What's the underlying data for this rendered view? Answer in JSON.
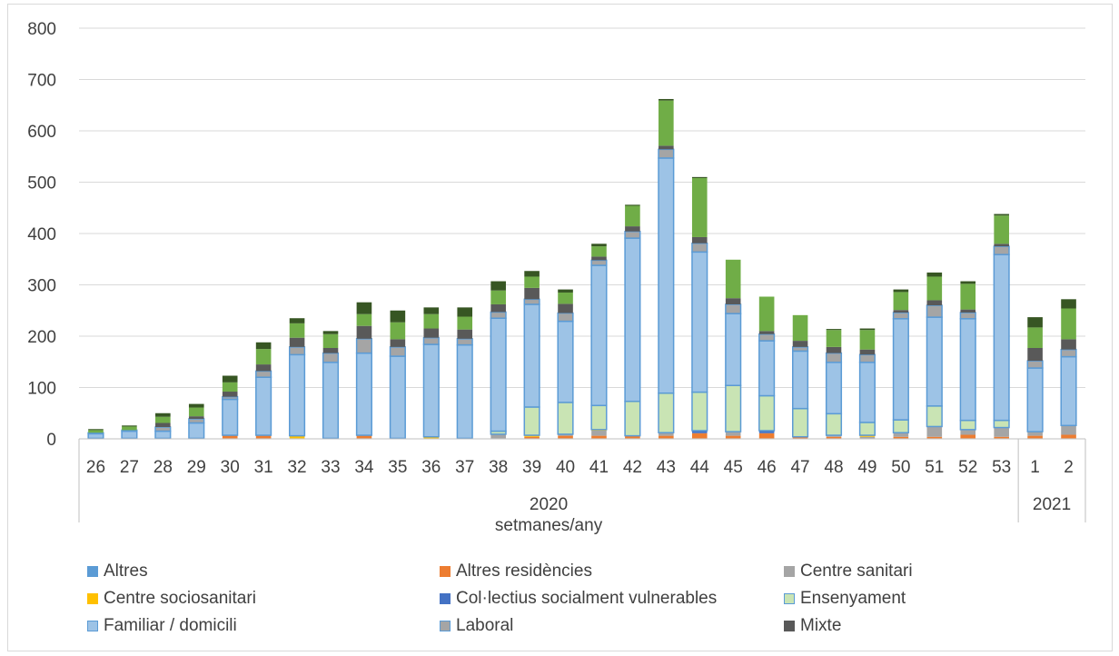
{
  "chart_data": {
    "type": "bar",
    "stacked": true,
    "xlabel": "setmanes/any",
    "ylim": [
      0,
      800
    ],
    "yticks": [
      0,
      100,
      200,
      300,
      400,
      500,
      600,
      700,
      800
    ],
    "grid": true,
    "legend_position": "bottom",
    "categories": [
      "26",
      "27",
      "28",
      "29",
      "30",
      "31",
      "32",
      "33",
      "34",
      "35",
      "36",
      "37",
      "38",
      "39",
      "40",
      "41",
      "42",
      "43",
      "44",
      "45",
      "46",
      "47",
      "48",
      "49",
      "50",
      "51",
      "52",
      "53",
      "1",
      "2"
    ],
    "year_groups": [
      {
        "label": "2020",
        "count": 28
      },
      {
        "label": "2021",
        "count": 2
      }
    ],
    "series": [
      {
        "name": "Altres",
        "color": "#5b9bd5",
        "values": [
          1,
          1,
          1,
          1,
          1,
          1,
          1,
          1,
          1,
          1,
          1,
          1,
          1,
          1,
          1,
          1,
          1,
          1,
          1,
          1,
          1,
          1,
          1,
          1,
          1,
          1,
          1,
          1,
          1,
          1
        ]
      },
      {
        "name": "Altres residències",
        "color": "#ed7d31",
        "values": [
          0,
          0,
          0,
          0,
          6,
          6,
          0,
          0,
          6,
          0,
          0,
          0,
          0,
          3,
          5,
          5,
          5,
          5,
          10,
          5,
          10,
          3,
          3,
          0,
          3,
          3,
          7,
          3,
          5,
          7
        ]
      },
      {
        "name": "Centre sanitari",
        "color": "#a5a5a5",
        "values": [
          0,
          0,
          0,
          0,
          0,
          0,
          0,
          0,
          0,
          0,
          0,
          0,
          8,
          0,
          3,
          10,
          0,
          6,
          0,
          8,
          0,
          0,
          3,
          3,
          8,
          20,
          10,
          18,
          8,
          18
        ]
      },
      {
        "name": "Centre sociosanitari",
        "color": "#ffc000",
        "values": [
          0,
          0,
          0,
          0,
          0,
          0,
          5,
          0,
          0,
          0,
          3,
          0,
          0,
          3,
          0,
          2,
          0,
          0,
          0,
          0,
          0,
          0,
          0,
          3,
          0,
          0,
          0,
          0,
          0,
          0
        ]
      },
      {
        "name": "Col·lectius socialment vulnerables",
        "color": "#4472c4",
        "values": [
          0,
          0,
          0,
          0,
          0,
          0,
          0,
          0,
          0,
          0,
          0,
          0,
          0,
          0,
          0,
          0,
          0,
          0,
          5,
          0,
          5,
          0,
          0,
          0,
          0,
          0,
          0,
          0,
          0,
          0
        ]
      },
      {
        "name": "Ensenyament",
        "color": "#c9e4b4",
        "values": [
          0,
          0,
          0,
          0,
          0,
          0,
          0,
          0,
          0,
          0,
          0,
          0,
          6,
          55,
          62,
          47,
          67,
          77,
          75,
          90,
          68,
          55,
          42,
          25,
          25,
          40,
          18,
          14,
          0,
          0
        ]
      },
      {
        "name": "Familiar / domicili",
        "color": "#9dc3e6",
        "values": [
          9,
          14,
          14,
          30,
          70,
          113,
          158,
          148,
          160,
          160,
          180,
          182,
          220,
          200,
          158,
          273,
          318,
          458,
          273,
          140,
          107,
          112,
          100,
          117,
          197,
          173,
          198,
          323,
          124,
          134
        ]
      },
      {
        "name": "Laboral",
        "color": "#a5a5a5",
        "values": [
          2,
          2,
          8,
          8,
          5,
          12,
          15,
          18,
          28,
          18,
          13,
          12,
          12,
          10,
          16,
          10,
          13,
          17,
          17,
          18,
          13,
          8,
          18,
          15,
          12,
          23,
          12,
          16,
          14,
          14
        ]
      },
      {
        "name": "Mixte",
        "color": "#595959",
        "values": [
          0,
          0,
          8,
          5,
          10,
          13,
          18,
          10,
          25,
          15,
          18,
          18,
          15,
          22,
          18,
          7,
          10,
          7,
          12,
          12,
          6,
          12,
          12,
          10,
          5,
          10,
          6,
          5,
          25,
          20
        ]
      },
      {
        "name": "",
        "color": "#70ad47",
        "values": [
          5,
          7,
          12,
          17,
          18,
          30,
          28,
          27,
          23,
          33,
          28,
          25,
          27,
          22,
          22,
          20,
          40,
          88,
          115,
          75,
          67,
          50,
          33,
          38,
          35,
          46,
          50,
          55,
          40,
          60
        ]
      },
      {
        "name": "",
        "color": "#375623",
        "values": [
          2,
          2,
          7,
          7,
          13,
          13,
          10,
          6,
          23,
          23,
          13,
          18,
          18,
          11,
          6,
          5,
          2,
          3,
          2,
          0,
          0,
          0,
          2,
          3,
          5,
          8,
          5,
          3,
          20,
          18
        ]
      }
    ]
  }
}
